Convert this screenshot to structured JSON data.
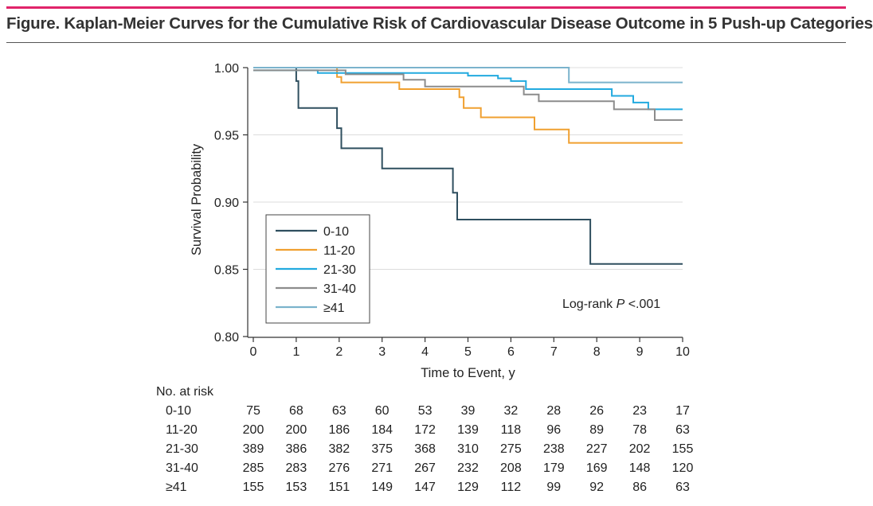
{
  "figure": {
    "title": "Figure. Kaplan-Meier Curves for the Cumulative Risk of Cardiovascular Disease Outcome in 5 Push-up Categories",
    "accent_color": "#e0246a"
  },
  "chart_data": {
    "type": "line",
    "xlabel": "Time to Event, y",
    "ylabel": "Survival Probability",
    "xlim": [
      0,
      10
    ],
    "ylim": [
      0.8,
      1.0
    ],
    "x_ticks": [
      "0",
      "1",
      "2",
      "3",
      "4",
      "5",
      "6",
      "7",
      "8",
      "9",
      "10"
    ],
    "y_ticks": [
      "1.00",
      "0.95",
      "0.90",
      "0.85",
      "0.80"
    ],
    "grid": "horizontal",
    "legend_position": "lower-left",
    "annotation_prefix": "Log-rank ",
    "annotation_p": "P",
    "annotation_suffix": " <.001",
    "series": [
      {
        "name": "0-10",
        "color": "#2f4f5f",
        "x": [
          0,
          1.0,
          1.0,
          1.05,
          1.05,
          1.95,
          1.95,
          2.05,
          2.05,
          3.0,
          3.0,
          4.65,
          4.65,
          4.75,
          4.75,
          7.85,
          7.85,
          10
        ],
        "y": [
          1.0,
          1.0,
          0.99,
          0.99,
          0.97,
          0.97,
          0.955,
          0.955,
          0.94,
          0.94,
          0.925,
          0.925,
          0.907,
          0.907,
          0.887,
          0.887,
          0.854,
          0.854
        ]
      },
      {
        "name": "11-20",
        "color": "#f0a030",
        "x": [
          0,
          1.95,
          1.95,
          2.05,
          2.05,
          3.4,
          3.4,
          4.8,
          4.8,
          4.9,
          4.9,
          5.3,
          5.3,
          6.55,
          6.55,
          7.35,
          7.35,
          10
        ],
        "y": [
          1.0,
          1.0,
          0.993,
          0.993,
          0.989,
          0.989,
          0.984,
          0.984,
          0.978,
          0.978,
          0.97,
          0.97,
          0.963,
          0.963,
          0.954,
          0.954,
          0.944,
          0.944
        ]
      },
      {
        "name": "21-30",
        "color": "#22aadf",
        "x": [
          0,
          1.5,
          1.5,
          5.0,
          5.0,
          5.7,
          5.7,
          6.0,
          6.0,
          6.35,
          6.35,
          8.35,
          8.35,
          8.85,
          8.85,
          9.2,
          9.2,
          10
        ],
        "y": [
          0.998,
          0.998,
          0.996,
          0.996,
          0.994,
          0.994,
          0.992,
          0.992,
          0.99,
          0.99,
          0.984,
          0.984,
          0.979,
          0.979,
          0.974,
          0.974,
          0.969,
          0.969
        ]
      },
      {
        "name": "31-40",
        "color": "#8c8c8c",
        "x": [
          0,
          2.15,
          2.15,
          3.5,
          3.5,
          4.0,
          4.0,
          6.3,
          6.3,
          6.65,
          6.65,
          8.4,
          8.4,
          9.35,
          9.35,
          10
        ],
        "y": [
          0.998,
          0.998,
          0.995,
          0.995,
          0.991,
          0.991,
          0.986,
          0.986,
          0.98,
          0.98,
          0.975,
          0.975,
          0.969,
          0.969,
          0.961,
          0.961
        ]
      },
      {
        "name": "≥41",
        "color": "#7bb3cc",
        "x": [
          0,
          7.35,
          7.35,
          10
        ],
        "y": [
          1.0,
          1.0,
          0.989,
          0.989
        ]
      }
    ]
  },
  "risk_table": {
    "heading": "No. at risk",
    "rows": [
      {
        "label": "0-10",
        "values": [
          "75",
          "68",
          "63",
          "60",
          "53",
          "39",
          "32",
          "28",
          "26",
          "23",
          "17"
        ]
      },
      {
        "label": "11-20",
        "values": [
          "200",
          "200",
          "186",
          "184",
          "172",
          "139",
          "118",
          "96",
          "89",
          "78",
          "63"
        ]
      },
      {
        "label": "21-30",
        "values": [
          "389",
          "386",
          "382",
          "375",
          "368",
          "310",
          "275",
          "238",
          "227",
          "202",
          "155"
        ]
      },
      {
        "label": "31-40",
        "values": [
          "285",
          "283",
          "276",
          "271",
          "267",
          "232",
          "208",
          "179",
          "169",
          "148",
          "120"
        ]
      },
      {
        "label": "≥41",
        "values": [
          "155",
          "153",
          "151",
          "149",
          "147",
          "129",
          "112",
          "99",
          "92",
          "86",
          "63"
        ]
      }
    ]
  }
}
